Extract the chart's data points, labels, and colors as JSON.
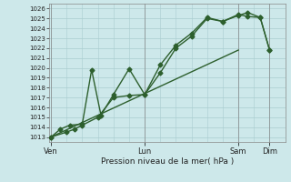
{
  "xlabel": "Pression niveau de la mer( hPa )",
  "bg_color": "#cde8ea",
  "grid_color": "#aacdd0",
  "line_color": "#2d5f2d",
  "ylim_min": 1012.5,
  "ylim_max": 1026.5,
  "yticks": [
    1013,
    1014,
    1015,
    1016,
    1017,
    1018,
    1019,
    1020,
    1021,
    1022,
    1023,
    1024,
    1025,
    1026
  ],
  "xtick_labels": [
    "Ven",
    "Lun",
    "Sam",
    "Dim"
  ],
  "xtick_positions": [
    0,
    3,
    6,
    7
  ],
  "xlim_min": -0.05,
  "xlim_max": 7.5,
  "series1_x": [
    0,
    0.5,
    0.75,
    1.0,
    1.5,
    2.0,
    2.5,
    3.0,
    3.5,
    4.0,
    4.5,
    5.0,
    5.5,
    6.0,
    6.3,
    6.7,
    7.0
  ],
  "series1_y": [
    1013.0,
    1013.5,
    1013.8,
    1014.2,
    1015.0,
    1017.0,
    1017.2,
    1017.3,
    1019.5,
    1022.0,
    1023.2,
    1025.0,
    1024.7,
    1025.3,
    1025.6,
    1025.1,
    1021.8
  ],
  "series2_x": [
    0,
    0.3,
    0.6,
    1.0,
    1.3,
    1.6,
    2.0,
    2.5,
    3.0,
    3.5,
    4.0,
    4.5,
    5.0,
    5.5,
    6.0,
    6.3,
    6.7,
    7.0
  ],
  "series2_y": [
    1013.0,
    1013.8,
    1014.2,
    1014.3,
    1019.8,
    1015.2,
    1017.3,
    1019.9,
    1017.3,
    1020.3,
    1022.3,
    1023.5,
    1025.1,
    1024.7,
    1025.4,
    1025.2,
    1025.1,
    1021.8
  ],
  "series3_x": [
    0,
    6.0
  ],
  "series3_y": [
    1013.0,
    1021.8
  ],
  "marker": "D",
  "markersize": 2.5,
  "linewidth": 1.0
}
